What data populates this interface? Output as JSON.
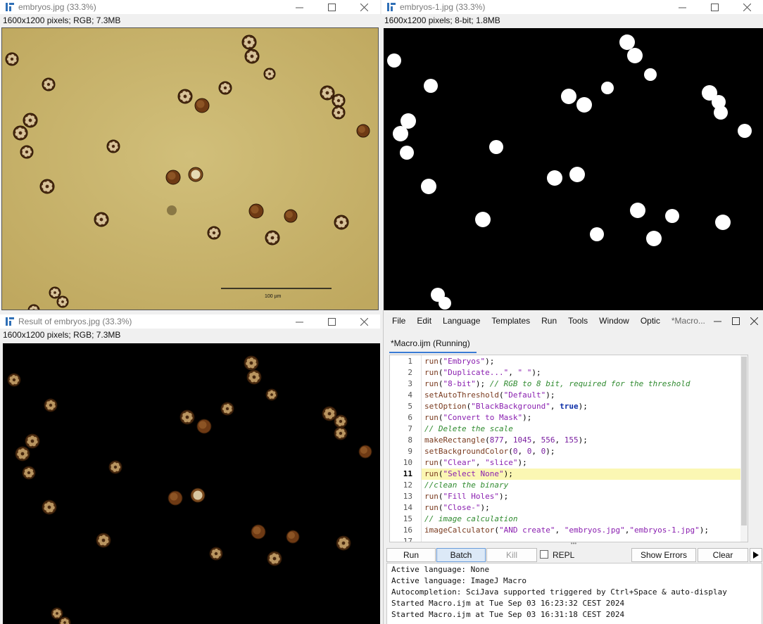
{
  "windows": {
    "original": {
      "title": "embryos.jpg (33.3%)",
      "info": "1600x1200 pixels; RGB; 7.3MB",
      "scalebar_label": "100 µm"
    },
    "mask": {
      "title": "embryos-1.jpg (33.3%)",
      "info": "1600x1200 pixels; 8-bit; 1.8MB"
    },
    "result": {
      "title": "Result of embryos.jpg (33.3%)",
      "info": "1600x1200 pixels; RGB; 7.3MB"
    }
  },
  "editor": {
    "menu": [
      "File",
      "Edit",
      "Language",
      "Templates",
      "Run",
      "Tools",
      "Window",
      "Optic",
      "*Macro..."
    ],
    "tab": "*Macro.ijm (Running)",
    "current_line": 11,
    "lines": [
      {
        "n": "1",
        "tokens": [
          [
            "fn",
            "run"
          ],
          [
            "p",
            "("
          ],
          [
            "str",
            "\"Embryos\""
          ],
          [
            "p",
            ");"
          ]
        ]
      },
      {
        "n": "2",
        "tokens": [
          [
            "fn",
            "run"
          ],
          [
            "p",
            "("
          ],
          [
            "str",
            "\"Duplicate...\""
          ],
          [
            "p",
            ", "
          ],
          [
            "str",
            "\" \""
          ],
          [
            "p",
            ");"
          ]
        ]
      },
      {
        "n": "3",
        "tokens": [
          [
            "fn",
            "run"
          ],
          [
            "p",
            "("
          ],
          [
            "str",
            "\"8-bit\""
          ],
          [
            "p",
            "); "
          ],
          [
            "cm",
            "// RGB to 8 bit, required for the threshold"
          ]
        ]
      },
      {
        "n": "4",
        "tokens": [
          [
            "fn",
            "setAutoThreshold"
          ],
          [
            "p",
            "("
          ],
          [
            "str",
            "\"Default\""
          ],
          [
            "p",
            ");"
          ]
        ]
      },
      {
        "n": "5",
        "tokens": [
          [
            "fn",
            "setOption"
          ],
          [
            "p",
            "("
          ],
          [
            "str",
            "\"BlackBackground\""
          ],
          [
            "p",
            ", "
          ],
          [
            "kw",
            "true"
          ],
          [
            "p",
            ");"
          ]
        ]
      },
      {
        "n": "6",
        "tokens": [
          [
            "fn",
            "run"
          ],
          [
            "p",
            "("
          ],
          [
            "str",
            "\"Convert to Mask\""
          ],
          [
            "p",
            ");"
          ]
        ]
      },
      {
        "n": "7",
        "tokens": [
          [
            "cm",
            "// Delete the scale"
          ]
        ]
      },
      {
        "n": "8",
        "tokens": [
          [
            "fn",
            "makeRectangle"
          ],
          [
            "p",
            "("
          ],
          [
            "num",
            "877"
          ],
          [
            "p",
            ", "
          ],
          [
            "num",
            "1045"
          ],
          [
            "p",
            ", "
          ],
          [
            "num",
            "556"
          ],
          [
            "p",
            ", "
          ],
          [
            "num",
            "155"
          ],
          [
            "p",
            ");"
          ]
        ]
      },
      {
        "n": "9",
        "tokens": [
          [
            "fn",
            "setBackgroundColor"
          ],
          [
            "p",
            "("
          ],
          [
            "num",
            "0"
          ],
          [
            "p",
            ", "
          ],
          [
            "num",
            "0"
          ],
          [
            "p",
            ", "
          ],
          [
            "num",
            "0"
          ],
          [
            "p",
            ");"
          ]
        ]
      },
      {
        "n": "10",
        "tokens": [
          [
            "fn",
            "run"
          ],
          [
            "p",
            "("
          ],
          [
            "str",
            "\"Clear\""
          ],
          [
            "p",
            ", "
          ],
          [
            "str",
            "\"slice\""
          ],
          [
            "p",
            ");"
          ]
        ]
      },
      {
        "n": "11",
        "tokens": [
          [
            "fn",
            "run"
          ],
          [
            "p",
            "("
          ],
          [
            "str",
            "\"Select None\""
          ],
          [
            "p",
            ");"
          ]
        ]
      },
      {
        "n": "12",
        "tokens": [
          [
            "cm",
            "//clean the binary"
          ]
        ]
      },
      {
        "n": "13",
        "tokens": [
          [
            "fn",
            "run"
          ],
          [
            "p",
            "("
          ],
          [
            "str",
            "\"Fill Holes\""
          ],
          [
            "p",
            ");"
          ]
        ]
      },
      {
        "n": "14",
        "tokens": [
          [
            "fn",
            "run"
          ],
          [
            "p",
            "("
          ],
          [
            "str",
            "\"Close-\""
          ],
          [
            "p",
            ");"
          ]
        ]
      },
      {
        "n": "15",
        "tokens": [
          [
            "cm",
            "// image calculation"
          ]
        ]
      },
      {
        "n": "16",
        "tokens": [
          [
            "fn",
            "imageCalculator"
          ],
          [
            "p",
            "("
          ],
          [
            "str",
            "\"AND create\""
          ],
          [
            "p",
            ", "
          ],
          [
            "str",
            "\"embryos.jpg\""
          ],
          [
            "p",
            ","
          ],
          [
            "str",
            "\"embryos-1.jpg\""
          ],
          [
            "p",
            ");"
          ]
        ]
      },
      {
        "n": "17",
        "tokens": []
      }
    ],
    "buttons": {
      "run": "Run",
      "batch": "Batch",
      "kill": "Kill",
      "repl": "REPL",
      "show_errors": "Show Errors",
      "clear": "Clear"
    },
    "console": [
      "Active language: None",
      "Active language: ImageJ Macro",
      "Autocompletion: SciJava supported triggered by Ctrl+Space & auto-display",
      "Started Macro.ijm at Tue Sep 03 16:23:32 CEST 2024",
      "Started Macro.ijm at Tue Sep 03 16:31:18 CEST 2024"
    ]
  },
  "colors": {
    "brightfield": "#c9b56e",
    "mask_bg": "#000000",
    "mask_fg": "#ffffff",
    "line_highlight": "#fbf7b3",
    "tab_accent": "#3a7bd5"
  }
}
